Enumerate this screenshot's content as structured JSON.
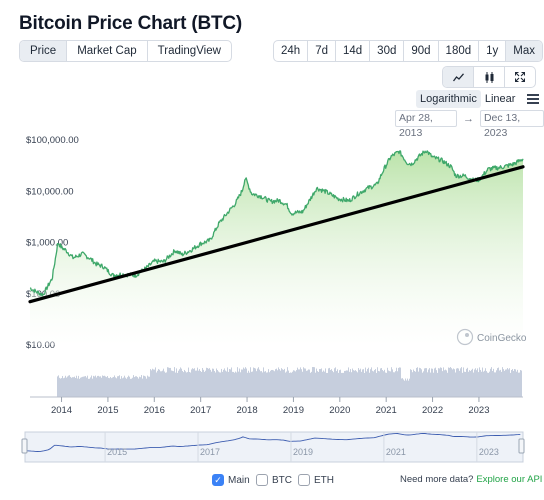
{
  "title": "Bitcoin Price Chart (BTC)",
  "view_tabs": [
    {
      "label": "Price",
      "active": true
    },
    {
      "label": "Market Cap",
      "active": false
    },
    {
      "label": "TradingView",
      "active": false
    }
  ],
  "range_tabs": [
    {
      "label": "24h",
      "active": false
    },
    {
      "label": "7d",
      "active": false
    },
    {
      "label": "14d",
      "active": false
    },
    {
      "label": "30d",
      "active": false
    },
    {
      "label": "90d",
      "active": false
    },
    {
      "label": "180d",
      "active": false
    },
    {
      "label": "1y",
      "active": false
    },
    {
      "label": "Max",
      "active": true
    }
  ],
  "chart_type_icons": [
    "line-chart-icon",
    "candlestick-icon",
    "expand-icon"
  ],
  "scale": {
    "logarithmic_label": "Logarithmic",
    "linear_label": "Linear",
    "active": "Logarithmic"
  },
  "date_range": {
    "from": "Apr 28, 2013",
    "to": "Dec 13, 2023"
  },
  "watermark": "CoinGecko",
  "series_toggles": [
    {
      "label": "Main",
      "checked": true
    },
    {
      "label": "BTC",
      "checked": false
    },
    {
      "label": "ETH",
      "checked": false
    }
  ],
  "footer": {
    "text": "Need more data?",
    "link": "Explore our API"
  },
  "colors": {
    "line": "#3fa86a",
    "fill_top": "#b8e2a6",
    "fill_bottom": "#ffffff",
    "trendline": "#000000",
    "volume": "#c6cedd",
    "navigator_line": "#3d5db0"
  },
  "chart_data": {
    "type": "line",
    "title": "Bitcoin Price Chart (BTC)",
    "xlabel": "",
    "ylabel": "",
    "y_scale": "log",
    "ylim": [
      10,
      100000
    ],
    "xlim": [
      2013.32,
      2023.95
    ],
    "grid": false,
    "yticks": [
      {
        "value": 10,
        "label": "$10.00"
      },
      {
        "value": 100,
        "label": "$100.00"
      },
      {
        "value": 1000,
        "label": "$1,000.00"
      },
      {
        "value": 10000,
        "label": "$10,000.00"
      },
      {
        "value": 100000,
        "label": "$100,000.00"
      }
    ],
    "xticks": [
      2014,
      2015,
      2016,
      2017,
      2018,
      2019,
      2020,
      2021,
      2022,
      2023
    ],
    "navigator_ticks": [
      2015,
      2017,
      2019,
      2021,
      2023
    ],
    "series": [
      {
        "x": [
          2013.32,
          2013.45,
          2013.6,
          2013.8,
          2013.92,
          2014.0,
          2014.1,
          2014.25,
          2014.45,
          2014.6,
          2014.75,
          2014.9,
          2015.0,
          2015.1,
          2015.3,
          2015.6,
          2015.85,
          2016.0,
          2016.2,
          2016.45,
          2016.6,
          2016.8,
          2017.0,
          2017.2,
          2017.4,
          2017.6,
          2017.75,
          2017.9,
          2017.96,
          2018.1,
          2018.3,
          2018.5,
          2018.7,
          2018.85,
          2018.96,
          2019.2,
          2019.4,
          2019.5,
          2019.7,
          2019.96,
          2020.2,
          2020.4,
          2020.6,
          2020.8,
          2020.96,
          2021.1,
          2021.28,
          2021.45,
          2021.55,
          2021.7,
          2021.86,
          2022.0,
          2022.2,
          2022.4,
          2022.5,
          2022.7,
          2022.87,
          2023.0,
          2023.2,
          2023.5,
          2023.75,
          2023.95
        ],
        "y": [
          130,
          110,
          95,
          200,
          1000,
          800,
          700,
          500,
          600,
          500,
          380,
          340,
          280,
          230,
          240,
          230,
          330,
          430,
          420,
          700,
          580,
          720,
          950,
          1100,
          2400,
          4000,
          5800,
          10500,
          18500,
          9000,
          8000,
          6300,
          6600,
          5500,
          3700,
          4000,
          8000,
          11500,
          9800,
          7200,
          6500,
          9000,
          11500,
          13500,
          28000,
          47000,
          60000,
          36000,
          34000,
          47000,
          63000,
          46000,
          40000,
          30000,
          20000,
          20000,
          16500,
          16800,
          27000,
          29500,
          34000,
          43000
        ]
      }
    ],
    "trendline": {
      "x": [
        2013.32,
        2023.95
      ],
      "y": [
        70,
        30000
      ]
    },
    "volume_note": "daily volume bars shown below price"
  }
}
